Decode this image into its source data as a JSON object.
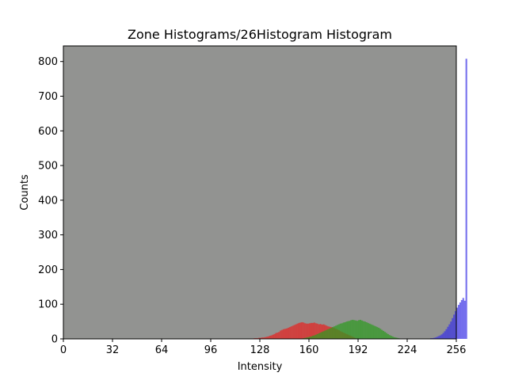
{
  "chart_data": {
    "type": "bar",
    "title": "Zone Histograms/26Histogram Histogram",
    "xlabel": "Intensity",
    "ylabel": "Counts",
    "xlim": [
      0,
      256
    ],
    "ylim": [
      0,
      845
    ],
    "xticks": [
      0,
      32,
      64,
      96,
      128,
      160,
      192,
      224,
      256
    ],
    "yticks": [
      0,
      100,
      200,
      300,
      400,
      500,
      600,
      700,
      800
    ],
    "background_color": "#929391",
    "grid": false,
    "legend": "none",
    "bin_width": 1,
    "series": [
      {
        "color": "#e8211f",
        "x_start": 119,
        "values": [
          1,
          1,
          1,
          1,
          1,
          2,
          2,
          2,
          3,
          3,
          4,
          4,
          5,
          6,
          7,
          9,
          10,
          12,
          14,
          17,
          18,
          20,
          24,
          26,
          28,
          29,
          30,
          32,
          34,
          36,
          38,
          40,
          42,
          44,
          46,
          47,
          48,
          47,
          45,
          44,
          44,
          45,
          46,
          46,
          47,
          45,
          44,
          42,
          43,
          41,
          42,
          40,
          38,
          36,
          35,
          34,
          33,
          31,
          29,
          27,
          25,
          22,
          20,
          18,
          16,
          14,
          12,
          10,
          8,
          6,
          4,
          2
        ]
      },
      {
        "color": "#2e9a1f",
        "x_start": 155,
        "values": [
          1,
          2,
          3,
          4,
          5,
          6,
          7,
          9,
          10,
          12,
          14,
          16,
          18,
          20,
          22,
          24,
          26,
          28,
          30,
          32,
          34,
          36,
          38,
          40,
          42,
          44,
          45,
          47,
          48,
          50,
          51,
          52,
          54,
          55,
          54,
          53,
          52,
          54,
          55,
          53,
          51,
          50,
          48,
          46,
          44,
          42,
          40,
          38,
          36,
          34,
          32,
          29,
          26,
          23,
          20,
          17,
          14,
          11,
          9,
          7,
          5,
          4,
          3,
          2,
          1,
          1,
          1
        ]
      },
      {
        "color": "#3a32e6",
        "x_start": 220,
        "values": [
          1,
          1,
          1,
          1,
          1,
          1,
          1,
          1,
          1,
          1,
          1,
          1,
          1,
          1,
          1,
          1,
          1,
          1,
          1,
          2,
          2,
          3,
          4,
          6,
          8,
          10,
          13,
          17,
          22,
          28,
          35,
          42,
          50,
          60,
          70,
          80,
          90,
          98,
          105,
          112,
          118,
          110,
          808
        ]
      }
    ]
  }
}
